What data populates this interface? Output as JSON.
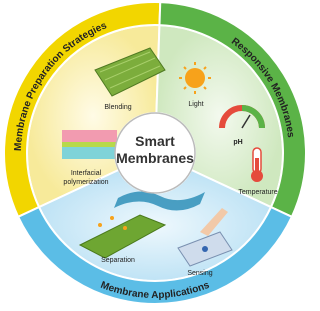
{
  "center_title": [
    "Smart",
    "Membranes"
  ],
  "sections": [
    {
      "title": "Membrane Preparation Strategies",
      "items": [
        [
          "Blending"
        ],
        [
          "Interfacial",
          "polymerization"
        ]
      ]
    },
    {
      "title": "Responsive Membranes",
      "items": [
        [
          "Light"
        ],
        [
          "pH"
        ],
        [
          "Temperature"
        ]
      ]
    },
    {
      "title": "Membrane Applications",
      "items": [
        [
          "Separation"
        ],
        [
          "Sensing"
        ]
      ]
    }
  ]
}
